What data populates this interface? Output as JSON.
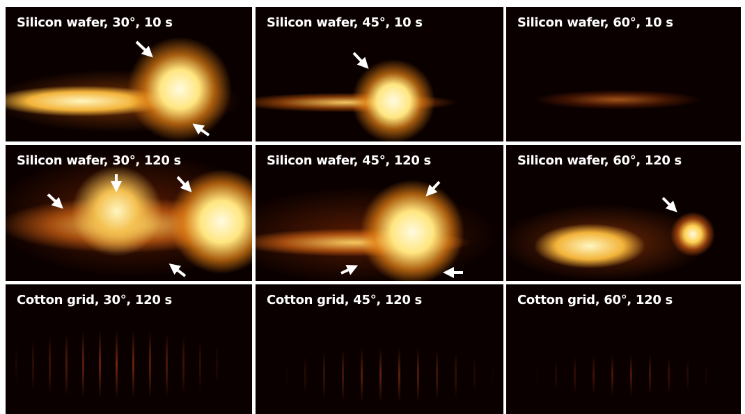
{
  "panels": [
    {
      "label": "Silicon wafer, 30°, 10 s"
    },
    {
      "label": "Silicon wafer, 45°, 10 s"
    },
    {
      "label": "Silicon wafer, 60°, 10 s"
    },
    {
      "label": "Silicon wafer, 30°, 120 s"
    },
    {
      "label": "Silicon wafer, 45°, 120 s"
    },
    {
      "label": "Silicon wafer, 60°, 120 s"
    },
    {
      "label": "Cotton grid, 30°, 120 s"
    },
    {
      "label": "Cotton grid, 45°, 120 s"
    },
    {
      "label": "Cotton grid, 60°, 120 s"
    }
  ]
}
